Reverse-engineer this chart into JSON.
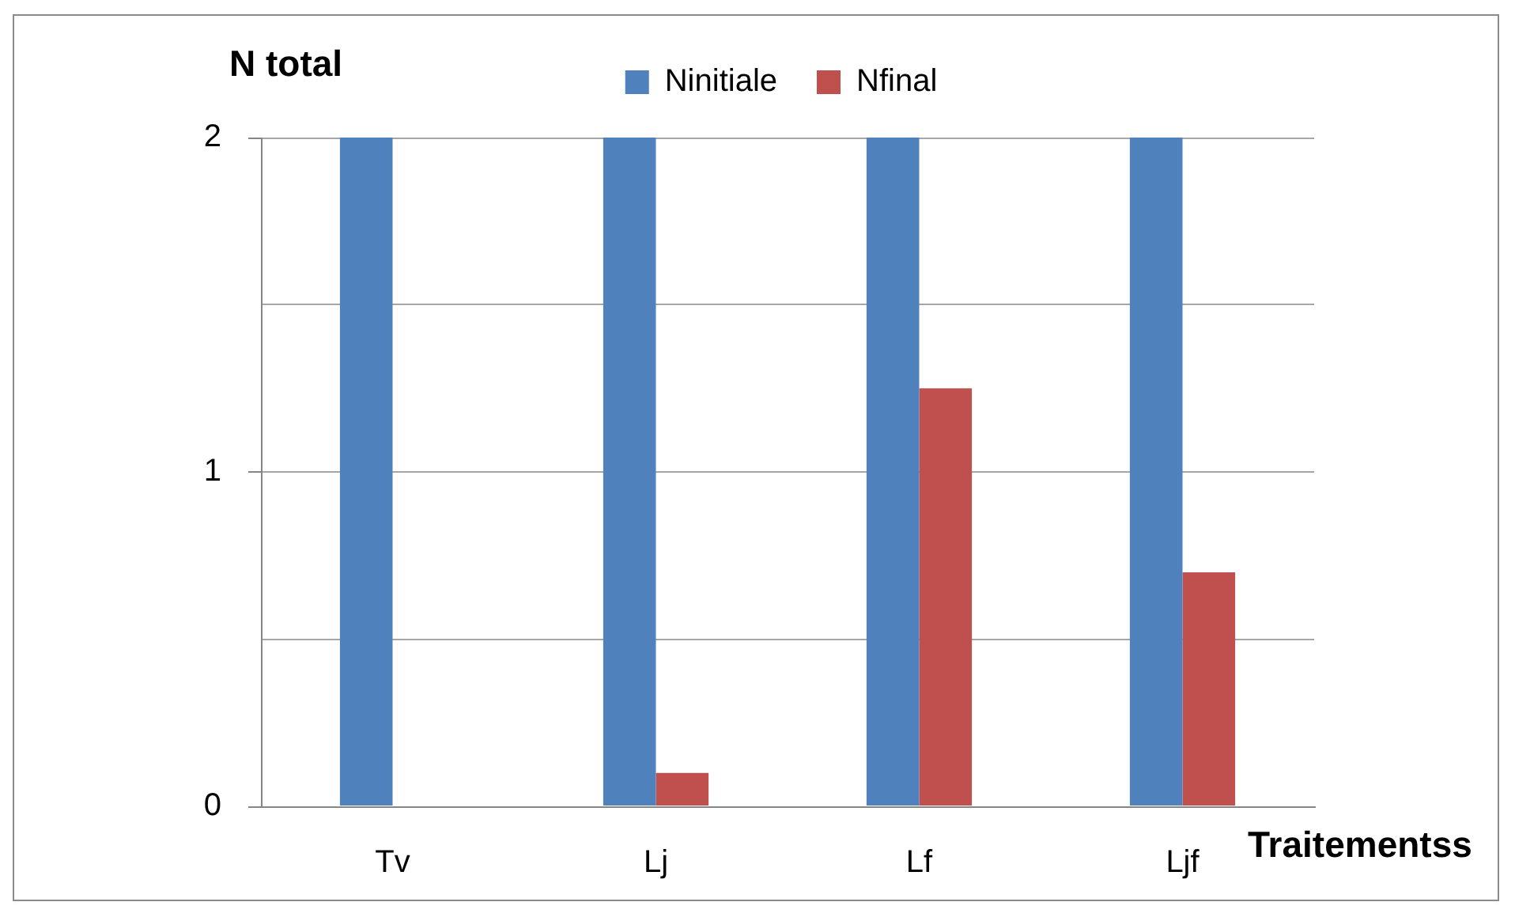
{
  "chart_data": {
    "type": "bar",
    "xlabel": "Traitementss",
    "ylabel": "N total",
    "categories": [
      "Tv",
      "Lj",
      "Lf",
      "Ljf"
    ],
    "series": [
      {
        "name": "Ninitiale",
        "color": "#4f81bd",
        "values": [
          2,
          2,
          2,
          2
        ]
      },
      {
        "name": "Nfinal",
        "color": "#c0504d",
        "values": [
          0,
          0.1,
          1.25,
          0.7
        ]
      }
    ],
    "ylim": [
      0,
      2
    ],
    "yticks": [
      0,
      {
        "value": 0.5,
        "label": null
      },
      1,
      {
        "value": 1.5,
        "label": null
      },
      2
    ],
    "grid": "y",
    "legend": "top"
  }
}
